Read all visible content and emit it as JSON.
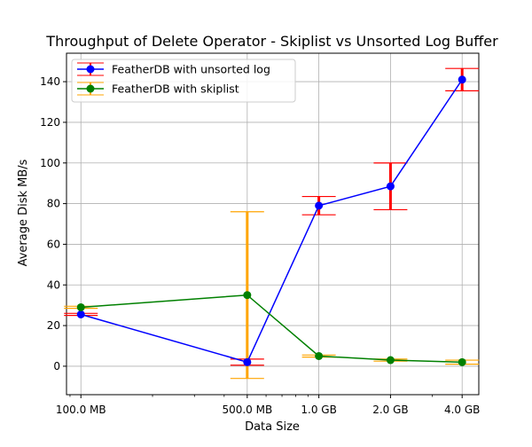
{
  "chart_data": {
    "type": "line",
    "title": "Throughput of Delete Operator  - Skiplist vs Unsorted Log Buffer",
    "xlabel": "Data Size",
    "ylabel": "Average Disk MB/s",
    "x_scale": "log",
    "x_values_mb": [
      100,
      500,
      1000,
      2000,
      4000
    ],
    "x_tick_labels": [
      "100.0 MB",
      "500.0 MB",
      "1.0 GB",
      "2.0 GB",
      "4.0 GB"
    ],
    "xlim_mb": [
      87,
      4700
    ],
    "ylim": [
      -14,
      154
    ],
    "yticks": [
      0,
      20,
      40,
      60,
      80,
      100,
      120,
      140
    ],
    "grid": true,
    "legend_position": "top-left",
    "series": [
      {
        "name": "FeatherDB with unsorted log",
        "color": "#0000ff",
        "errorbar_color": "#ff0000",
        "values": [
          25.5,
          2,
          79,
          88.5,
          141
        ],
        "error": [
          0.5,
          1.5,
          4.5,
          11.5,
          5.5
        ]
      },
      {
        "name": "FeatherDB with skiplist",
        "color": "#008000",
        "errorbar_color": "#ffa500",
        "values": [
          29,
          35,
          5,
          3,
          2
        ],
        "error": [
          0.5,
          41,
          0.5,
          0.5,
          1
        ]
      }
    ]
  }
}
